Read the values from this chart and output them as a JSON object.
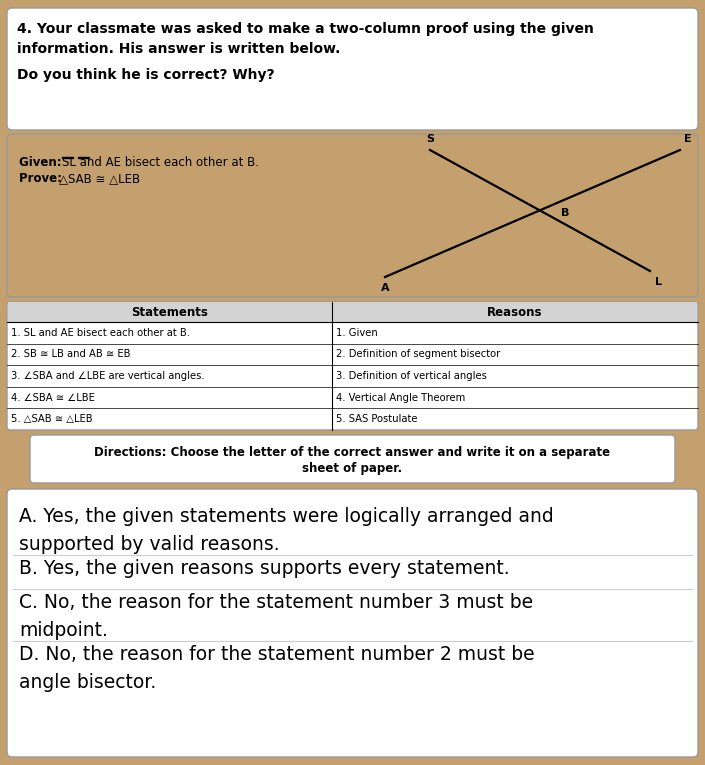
{
  "bg_color": "#c4a06e",
  "white": "#ffffff",
  "light_gray": "#d3d3d3",
  "question_line1": "4. Your classmate was asked to make a two-column proof using the given",
  "question_line2": "information. His answer is written below.",
  "question_line3": "Do you think he is correct? Why?",
  "given_text_bold": "Given: ",
  "given_text_rest": "SL and AE bisect each other at B.",
  "prove_text_bold": "Prove: ",
  "prove_text_rest": "△SAB ≅ △LEB",
  "table_headers": [
    "Statements",
    "Reasons"
  ],
  "table_rows": [
    [
      "1. SL and AE bisect each other at B.",
      "1. Given"
    ],
    [
      "2. SB ≅ LB and AB ≅ EB",
      "2. Definition of segment bisector"
    ],
    [
      "3. ∠SBA and ∠LBE are vertical angles.",
      "3. Definition of vertical angles"
    ],
    [
      "4. ∠SBA ≅ ∠LBE",
      "4. Vertical Angle Theorem"
    ],
    [
      "5. △SAB ≅ △LEB",
      "5. SAS Postulate"
    ]
  ],
  "directions_line1": "Directions: Choose the letter of the correct answer and write it on a separate",
  "directions_line2": "sheet of paper.",
  "choice_A1": "A. Yes, the given statements were logically arranged and",
  "choice_A2": "supported by valid reasons.",
  "choice_B": "B. Yes, the given reasons supports every statement.",
  "choice_C1": "C. No, the reason for the statement number 3 must be",
  "choice_C2": "midpoint.",
  "choice_D1": "D. No, the reason for the statement number 2 must be",
  "choice_D2": "angle bisector."
}
